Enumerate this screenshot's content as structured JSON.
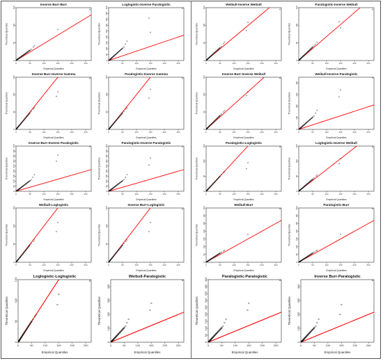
{
  "figure": {
    "x_label": "Empirical Quantiles",
    "y_label": "Theoretical Quantiles"
  },
  "colors": {
    "line": "#ff0000",
    "points": "#111111",
    "axis": "#000000"
  },
  "chart_data": [
    {
      "type": "scatter",
      "title": "Inverse Burr-Burr",
      "xlabel": "Empirical Quantiles",
      "ylabel": "Theoretical Quantiles",
      "xlim": [
        0,
        270
      ],
      "ylim": [
        0,
        150
      ],
      "xticks": [
        0,
        50,
        100,
        150,
        200,
        250
      ],
      "yticks": [
        0,
        50,
        100,
        150
      ],
      "slope": 0.48,
      "tail": [
        [
          55,
          32
        ],
        [
          62,
          38
        ],
        [
          66,
          42
        ],
        [
          150,
          88
        ],
        [
          265,
          145
        ]
      ]
    },
    {
      "type": "scatter",
      "title": "Loglogistic-Inverse Paralogistic",
      "xlabel": "Empirical Quantiles",
      "ylabel": "Theoretical Quantiles",
      "xlim": [
        0,
        270
      ],
      "ylim": [
        0,
        450
      ],
      "xticks": [
        0,
        50,
        100,
        150,
        200,
        250
      ],
      "yticks": [
        0,
        50,
        100,
        150,
        200,
        250,
        300,
        350,
        400,
        450
      ],
      "slope": 0.8,
      "tail": [
        [
          55,
          115
        ],
        [
          60,
          140
        ],
        [
          66,
          165
        ],
        [
          145,
          360
        ],
        [
          150,
          240
        ],
        [
          265,
          445
        ]
      ]
    },
    {
      "type": "scatter",
      "title": "Weibull-Inverse Weibull",
      "xlabel": "Empirical Quantiles",
      "ylabel": "Theoretical Quantiles",
      "xlim": [
        0,
        270
      ],
      "ylim": [
        0,
        150
      ],
      "xticks": [
        0,
        50,
        100,
        150,
        200,
        250
      ],
      "yticks": [
        0,
        50,
        100,
        150
      ],
      "slope": 0.66,
      "tail": [
        [
          55,
          40
        ],
        [
          62,
          48
        ],
        [
          66,
          52
        ],
        [
          145,
          85
        ],
        [
          150,
          108
        ],
        [
          265,
          145
        ]
      ]
    },
    {
      "type": "scatter",
      "title": "Paralogistic-Inverse Weibull",
      "xlabel": "Empirical Quantiles",
      "ylabel": "Theoretical Quantiles",
      "xlim": [
        0,
        270
      ],
      "ylim": [
        0,
        150
      ],
      "xticks": [
        0,
        50,
        100,
        150,
        200,
        250
      ],
      "yticks": [
        0,
        50,
        100,
        150
      ],
      "slope": 0.68,
      "tail": [
        [
          55,
          42
        ],
        [
          60,
          46
        ],
        [
          66,
          52
        ],
        [
          145,
          110
        ],
        [
          150,
          93
        ],
        [
          265,
          145
        ]
      ]
    },
    {
      "type": "scatter",
      "title": "Inverse Burr-Inverse Gamma",
      "xlabel": "Empirical Quantiles",
      "ylabel": "Theoretical Quantiles",
      "xlim": [
        0,
        270
      ],
      "ylim": [
        0,
        150
      ],
      "xticks": [
        0,
        50,
        100,
        150,
        200,
        250
      ],
      "yticks": [
        0,
        50,
        100,
        150
      ],
      "slope": 1.0,
      "tail": [
        [
          55,
          52
        ],
        [
          62,
          58
        ],
        [
          66,
          62
        ],
        [
          145,
          95
        ],
        [
          150,
          108
        ],
        [
          265,
          147
        ]
      ]
    },
    {
      "type": "scatter",
      "title": "Paralogistic-Inverse Gamma",
      "xlabel": "Empirical Quantiles",
      "ylabel": "Theoretical Quantiles",
      "xlim": [
        0,
        270
      ],
      "ylim": [
        0,
        150
      ],
      "xticks": [
        0,
        50,
        100,
        150,
        200,
        250
      ],
      "yticks": [
        0,
        50,
        100,
        150
      ],
      "slope": 1.0,
      "tail": [
        [
          55,
          52
        ],
        [
          62,
          58
        ],
        [
          66,
          62
        ],
        [
          145,
          90
        ],
        [
          150,
          115
        ],
        [
          265,
          147
        ]
      ]
    },
    {
      "type": "scatter",
      "title": "Inverse Burr-Inverse Weibull",
      "xlabel": "Empirical Quantiles",
      "ylabel": "Theoretical Quantiles",
      "xlim": [
        0,
        270
      ],
      "ylim": [
        0,
        150
      ],
      "xticks": [
        0,
        50,
        100,
        150,
        200,
        250
      ],
      "yticks": [
        0,
        50,
        100,
        150
      ],
      "slope": 0.72,
      "tail": [
        [
          55,
          44
        ],
        [
          62,
          50
        ],
        [
          66,
          54
        ],
        [
          145,
          97
        ],
        [
          150,
          108
        ],
        [
          265,
          147
        ]
      ]
    },
    {
      "type": "scatter",
      "title": "Weibull-Inverse Paralogistic",
      "xlabel": "Empirical Quantiles",
      "ylabel": "Theoretical Quantiles",
      "xlim": [
        0,
        270
      ],
      "ylim": [
        0,
        450
      ],
      "xticks": [
        0,
        50,
        100,
        150,
        200,
        250
      ],
      "yticks": [
        0,
        100,
        200,
        300,
        400
      ],
      "slope": 0.78,
      "tail": [
        [
          55,
          115
        ],
        [
          60,
          140
        ],
        [
          66,
          165
        ],
        [
          145,
          280
        ],
        [
          150,
          340
        ],
        [
          265,
          445
        ]
      ]
    },
    {
      "type": "scatter",
      "title": "Inverse Burr-Inverse Paralogistic",
      "xlabel": "Empirical Quantiles",
      "ylabel": "Theoretical Quantiles",
      "xlim": [
        0,
        270
      ],
      "ylim": [
        0,
        450
      ],
      "xticks": [
        0,
        50,
        100,
        150,
        200,
        250
      ],
      "yticks": [
        0,
        50,
        100,
        150,
        200,
        250,
        300,
        350,
        400,
        450
      ],
      "slope": 0.8,
      "tail": [
        [
          55,
          115
        ],
        [
          60,
          140
        ],
        [
          66,
          165
        ],
        [
          145,
          300
        ],
        [
          150,
          360
        ],
        [
          265,
          445
        ]
      ]
    },
    {
      "type": "scatter",
      "title": "Paralogistic-Inverse Paralogistic",
      "xlabel": "Empirical Quantiles",
      "ylabel": "Theoretical Quantiles",
      "xlim": [
        0,
        270
      ],
      "ylim": [
        0,
        450
      ],
      "xticks": [
        0,
        50,
        100,
        150,
        200,
        250
      ],
      "yticks": [
        0,
        50,
        100,
        150,
        200,
        250,
        300,
        350,
        400,
        450
      ],
      "slope": 0.8,
      "tail": [
        [
          55,
          115
        ],
        [
          60,
          140
        ],
        [
          66,
          165
        ],
        [
          145,
          260
        ],
        [
          150,
          330
        ],
        [
          265,
          445
        ]
      ]
    },
    {
      "type": "scatter",
      "title": "Paralogistic-Loglogistic",
      "xlabel": "Empirical Quantiles",
      "ylabel": "Theoretical Quantiles",
      "xlim": [
        0,
        270
      ],
      "ylim": [
        0,
        150
      ],
      "xticks": [
        0,
        50,
        100,
        150,
        200,
        250
      ],
      "yticks": [
        0,
        50,
        100,
        150
      ],
      "slope": 1.0,
      "tail": [
        [
          55,
          55
        ],
        [
          62,
          62
        ],
        [
          66,
          66
        ],
        [
          145,
          75
        ],
        [
          150,
          95
        ],
        [
          265,
          147
        ]
      ]
    },
    {
      "type": "scatter",
      "title": "Loglogistic-Inverse Weibull",
      "xlabel": "Empirical Quantiles",
      "ylabel": "Theoretical Quantiles",
      "xlim": [
        0,
        270
      ],
      "ylim": [
        0,
        150
      ],
      "xticks": [
        0,
        50,
        100,
        150,
        200,
        250
      ],
      "yticks": [
        0,
        50,
        100,
        150
      ],
      "slope": 0.72,
      "tail": [
        [
          55,
          44
        ],
        [
          62,
          50
        ],
        [
          66,
          54
        ],
        [
          145,
          92
        ],
        [
          150,
          108
        ],
        [
          265,
          147
        ]
      ]
    },
    {
      "type": "scatter",
      "title": "Weibull-Loglogistic",
      "xlabel": "Empirical Quantiles",
      "ylabel": "Theoretical Quantiles",
      "xlim": [
        0,
        270
      ],
      "ylim": [
        0,
        150
      ],
      "xticks": [
        0,
        50,
        100,
        150,
        200,
        250
      ],
      "yticks": [
        0,
        50,
        100,
        150
      ],
      "slope": 1.0,
      "tail": [
        [
          55,
          52
        ],
        [
          62,
          58
        ],
        [
          66,
          62
        ],
        [
          145,
          85
        ],
        [
          150,
          110
        ],
        [
          265,
          147
        ]
      ]
    },
    {
      "type": "scatter",
      "title": "Inverse Burr-Loglogistic",
      "xlabel": "Empirical Quantiles",
      "ylabel": "Theoretical Quantiles",
      "xlim": [
        0,
        270
      ],
      "ylim": [
        0,
        150
      ],
      "xticks": [
        0,
        50,
        100,
        150,
        200,
        250
      ],
      "yticks": [
        0,
        50,
        100,
        150
      ],
      "slope": 1.0,
      "tail": [
        [
          55,
          52
        ],
        [
          62,
          58
        ],
        [
          66,
          62
        ],
        [
          145,
          85
        ],
        [
          150,
          110
        ],
        [
          265,
          147
        ]
      ]
    },
    {
      "type": "scatter",
      "title": "Weibull-Burr",
      "xlabel": "Empirical Quantiles",
      "ylabel": "Theoretical Quantiles",
      "xlim": [
        0,
        270
      ],
      "ylim": [
        0,
        350
      ],
      "xticks": [
        0,
        50,
        100,
        150,
        200,
        250
      ],
      "yticks": [
        0,
        50,
        100,
        150,
        200,
        250,
        300,
        350
      ],
      "slope": 1.0,
      "tail": [
        [
          55,
          65
        ],
        [
          62,
          72
        ],
        [
          66,
          78
        ],
        [
          150,
          180
        ],
        [
          265,
          345
        ]
      ]
    },
    {
      "type": "scatter",
      "title": "Paralogistic-Burr",
      "xlabel": "Empirical Quantiles",
      "ylabel": "Theoretical Quantiles",
      "xlim": [
        0,
        270
      ],
      "ylim": [
        0,
        350
      ],
      "xticks": [
        0,
        50,
        100,
        150,
        200,
        250
      ],
      "yticks": [
        0,
        50,
        100,
        150,
        200,
        250,
        300,
        350
      ],
      "slope": 1.0,
      "tail": [
        [
          55,
          65
        ],
        [
          62,
          72
        ],
        [
          66,
          78
        ],
        [
          150,
          180
        ],
        [
          265,
          345
        ]
      ]
    },
    {
      "type": "scatter",
      "title": "Loglogistic-Loglogistic",
      "xlabel": "Empirical Quantiles",
      "ylabel": "Theoretical Quantiles",
      "xlim": [
        0,
        270
      ],
      "ylim": [
        0,
        150
      ],
      "xticks": [
        0,
        50,
        100,
        150,
        200,
        250
      ],
      "yticks": [
        0,
        50,
        100,
        150
      ],
      "slope": 1.0,
      "tail": [
        [
          55,
          55
        ],
        [
          62,
          62
        ],
        [
          66,
          66
        ],
        [
          145,
          90
        ],
        [
          150,
          115
        ],
        [
          265,
          147
        ]
      ]
    },
    {
      "type": "scatter",
      "title": "Weibull-Paralogistic",
      "xlabel": "Empirical Quantiles",
      "ylabel": "Theoretical Quantiles",
      "xlim": [
        0,
        270
      ],
      "ylim": [
        0,
        450
      ],
      "xticks": [
        0,
        50,
        100,
        150,
        200,
        250
      ],
      "yticks": [
        0,
        100,
        200,
        300,
        400
      ],
      "slope": 0.8,
      "tail": [
        [
          55,
          115
        ],
        [
          60,
          140
        ],
        [
          66,
          165
        ],
        [
          145,
          230
        ],
        [
          150,
          280
        ],
        [
          265,
          445
        ]
      ]
    },
    {
      "type": "scatter",
      "title": "Paralogistic-Paralogistic",
      "xlabel": "Empirical Quantiles",
      "ylabel": "Theoretical Quantiles",
      "xlim": [
        0,
        270
      ],
      "ylim": [
        0,
        450
      ],
      "xticks": [
        0,
        50,
        100,
        150,
        200,
        250
      ],
      "yticks": [
        0,
        50,
        100,
        150,
        200,
        250,
        300,
        350,
        400,
        450
      ],
      "slope": 0.8,
      "tail": [
        [
          55,
          115
        ],
        [
          60,
          140
        ],
        [
          66,
          165
        ],
        [
          145,
          230
        ],
        [
          150,
          280
        ],
        [
          265,
          445
        ]
      ]
    },
    {
      "type": "scatter",
      "title": "Inverse Burr-Paralogistic",
      "xlabel": "Empirical Quantiles",
      "ylabel": "Theoretical Quantiles",
      "xlim": [
        0,
        270
      ],
      "ylim": [
        0,
        450
      ],
      "xticks": [
        0,
        50,
        100,
        150,
        200,
        250
      ],
      "yticks": [
        0,
        100,
        200,
        300,
        400
      ],
      "slope": 0.8,
      "tail": [
        [
          55,
          115
        ],
        [
          60,
          140
        ],
        [
          66,
          165
        ],
        [
          145,
          200
        ],
        [
          150,
          270
        ],
        [
          265,
          445
        ]
      ]
    }
  ]
}
